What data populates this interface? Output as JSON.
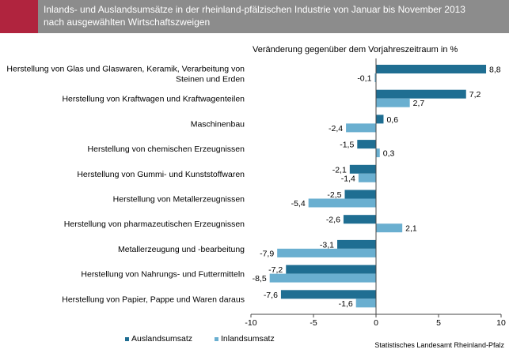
{
  "header": {
    "title_line1": "Inlands- und Auslandsumsätze in der rheinland-pfälzischen Industrie von Januar bis  November 2013",
    "title_line2": "nach ausgewählten Wirtschaftszweigen"
  },
  "colors": {
    "header_bg": "#8c8c8c",
    "accent": "#b0243e",
    "ausland": "#1f6e92",
    "inland": "#6aafd0"
  },
  "source": "Statistisches Landesamt Rheinland-Pfalz",
  "chart_data": {
    "type": "bar",
    "orientation": "horizontal",
    "subtitle": "Veränderung gegenüber dem Vorjahreszeitraum  in %",
    "categories": [
      [
        "Herstellung von Glas und Glaswaren, Keramik, Verarbeitung von",
        "Steinen und Erden"
      ],
      [
        "Herstellung von Kraftwagen und Kraftwagenteilen"
      ],
      [
        "Maschinenbau"
      ],
      [
        "Herstellung von chemischen Erzeugnissen"
      ],
      [
        "Herstellung von Gummi- und Kunststoffwaren"
      ],
      [
        "Herstellung von Metallerzeugnissen"
      ],
      [
        "Herstellung von pharmazeutischen Erzeugnissen"
      ],
      [
        "Metallerzeugung und -bearbeitung"
      ],
      [
        "Herstellung von Nahrungs- und Futtermitteln"
      ],
      [
        "Herstellung von Papier, Pappe und Waren daraus"
      ]
    ],
    "series": [
      {
        "name": "Auslandsumsatz",
        "values": [
          8.8,
          7.2,
          0.6,
          -1.5,
          -2.1,
          -2.5,
          -2.6,
          -3.1,
          -7.2,
          -7.6
        ],
        "labels": [
          "8,8",
          "7,2",
          "0,6",
          "-1,5",
          "-2,1",
          "-2,5",
          "-2,6",
          "-3,1",
          "-7,2",
          "-7,6"
        ]
      },
      {
        "name": "Inlandsumsatz",
        "values": [
          -0.1,
          2.7,
          -2.4,
          0.3,
          -1.4,
          -5.4,
          2.1,
          -7.9,
          -8.5,
          -1.6
        ],
        "labels": [
          "-0,1",
          "2,7",
          "-2,4",
          "0,3",
          "-1,4",
          "-5,4",
          "2,1",
          "-7,9",
          "-8,5",
          "-1,6"
        ]
      }
    ],
    "xlim": [
      -10,
      10
    ],
    "xticks": [
      -10,
      -5,
      0,
      5,
      10
    ],
    "xtick_labels": [
      "-10",
      "-5",
      "0",
      "5",
      "10"
    ],
    "legend_position": "bottom-left",
    "grid": false
  }
}
